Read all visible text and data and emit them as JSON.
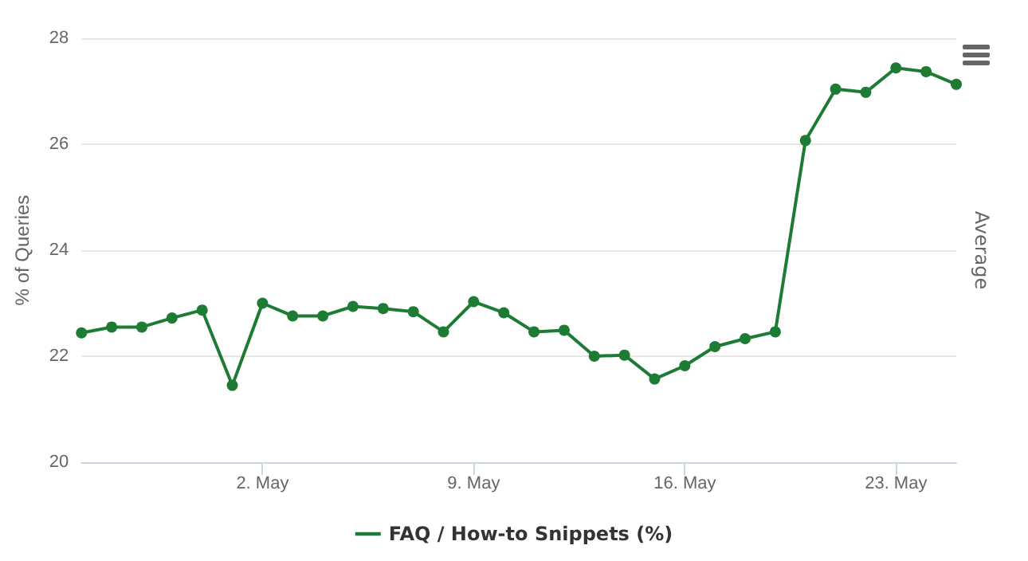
{
  "chart_data": {
    "type": "line",
    "xlabel": null,
    "ylabel": "% of Queries",
    "y2label": "Average",
    "x": [
      "--04-26",
      "--04-27",
      "--04-28",
      "--04-29",
      "--04-30",
      "--05-01",
      "--05-02",
      "--05-03",
      "--05-04",
      "--05-05",
      "--05-06",
      "--05-07",
      "--05-08",
      "--05-09",
      "--05-10",
      "--05-11",
      "--05-12",
      "--05-13",
      "--05-14",
      "--05-15",
      "--05-16",
      "--05-17",
      "--05-18",
      "--05-19",
      "--05-20",
      "--05-21",
      "--05-22",
      "--05-23",
      "--05-24",
      "--05-25"
    ],
    "series": [
      {
        "name": "FAQ / How-to Snippets (%)",
        "color": "#1e7b34",
        "values": [
          22.44,
          22.55,
          22.55,
          22.72,
          22.87,
          21.45,
          23.0,
          22.76,
          22.76,
          22.94,
          22.9,
          22.84,
          22.46,
          23.03,
          22.82,
          22.46,
          22.49,
          22.0,
          22.02,
          21.57,
          21.82,
          22.18,
          22.33,
          22.46,
          26.07,
          27.04,
          26.98,
          27.44,
          27.37,
          27.13
        ]
      }
    ],
    "xlim": [
      "--04-26",
      "--05-25"
    ],
    "xticks": [
      {
        "value": "--05-02",
        "label": "2. May"
      },
      {
        "value": "--05-09",
        "label": "9. May"
      },
      {
        "value": "--05-16",
        "label": "16. May"
      },
      {
        "value": "--05-23",
        "label": "23. May"
      }
    ],
    "ylim": [
      20,
      28
    ],
    "yticks": [
      20,
      22,
      24,
      26,
      28
    ],
    "grid": "y",
    "legend": "bottom",
    "marker": "circle",
    "line_style": "solid"
  }
}
